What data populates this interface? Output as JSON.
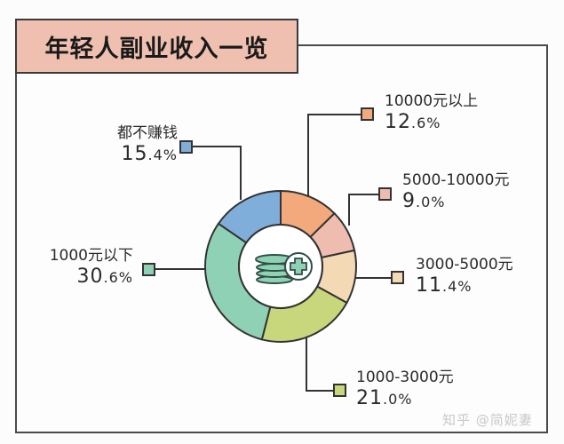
{
  "title": "年轻人副业收入一览",
  "watermark": "知乎 @简妮妻",
  "center_icon": "coins-plus-icon",
  "colors": {
    "over_10000": "#f4a97c",
    "5000_10000": "#efbcb0",
    "3000_5000": "#f3d9b4",
    "1000_3000": "#c8d67c",
    "under_1000": "#8fd1b5",
    "no_income": "#7faedb",
    "title_bg": "#efc0b0",
    "border": "#3a3a3a"
  },
  "labels": [
    {
      "category": "10000元以上",
      "int": "12",
      "dec": ".6%"
    },
    {
      "category": "5000-10000元",
      "int": "9",
      "dec": ".0%"
    },
    {
      "category": "3000-5000元",
      "int": "11",
      "dec": ".4%"
    },
    {
      "category": "1000-3000元",
      "int": "21",
      "dec": ".0%"
    },
    {
      "category": "1000元以下",
      "int": "30",
      "dec": ".6%"
    },
    {
      "category": "都不赚钱",
      "int": "15",
      "dec": ".4%"
    }
  ],
  "chart_data": {
    "type": "pie",
    "subtype": "donut",
    "title": "年轻人副业收入一览",
    "categories": [
      "10000元以上",
      "5000-10000元",
      "3000-5000元",
      "1000-3000元",
      "1000元以下",
      "都不赚钱"
    ],
    "values": [
      12.6,
      9.0,
      11.4,
      21.0,
      30.6,
      15.4
    ],
    "unit": "%",
    "colors": [
      "#f4a97c",
      "#efbcb0",
      "#f3d9b4",
      "#c8d67c",
      "#8fd1b5",
      "#7faedb"
    ],
    "start_angle": "12 o'clock",
    "direction": "clockwise",
    "legend": "callout labels with leader lines"
  }
}
